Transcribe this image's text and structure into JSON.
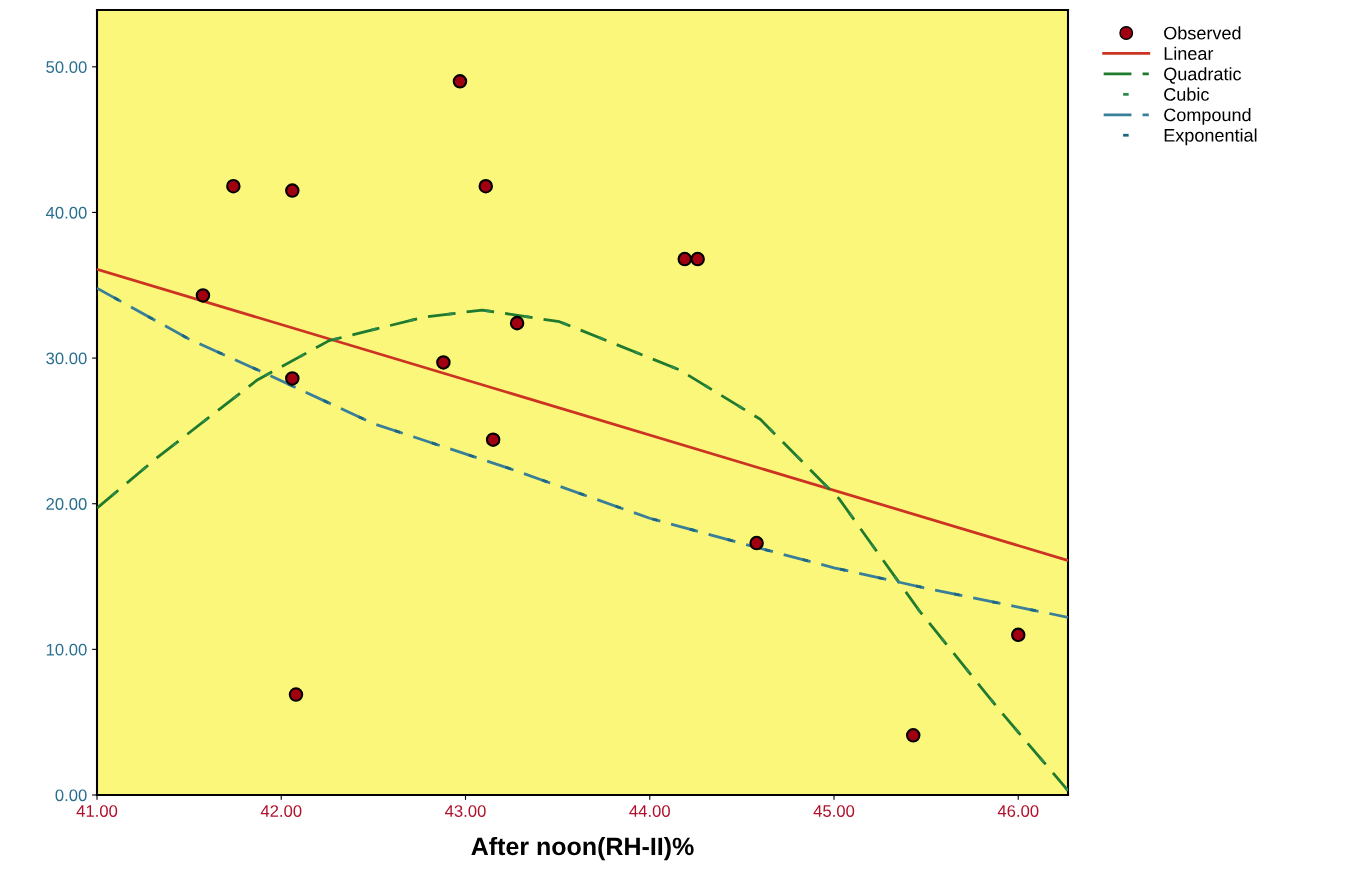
{
  "chart_data": {
    "type": "scatter",
    "xlabel": "After noon(RH-II)%",
    "xlim": [
      41.0,
      46.27
    ],
    "ylim": [
      0,
      53.9
    ],
    "xticks": [
      {
        "value": 41,
        "label": "41.00"
      },
      {
        "value": 42,
        "label": "42.00"
      },
      {
        "value": 43,
        "label": "43.00"
      },
      {
        "value": 44,
        "label": "44.00"
      },
      {
        "value": 45,
        "label": "45.00"
      },
      {
        "value": 46,
        "label": "46.00"
      }
    ],
    "yticks": [
      {
        "value": 0,
        "label": "0.00"
      },
      {
        "value": 10,
        "label": "10.00"
      },
      {
        "value": 20,
        "label": "20.00"
      },
      {
        "value": 30,
        "label": "30.00"
      },
      {
        "value": 40,
        "label": "40.00"
      },
      {
        "value": 50,
        "label": "50.00"
      }
    ],
    "grid": false,
    "legend": "top right",
    "series": [
      {
        "name": "Observed",
        "marker": "circle",
        "color": "#a00010",
        "x": [
          41.575,
          41.74,
          42.06,
          42.06,
          42.08,
          42.88,
          42.97,
          43.11,
          43.15,
          43.28,
          44.19,
          44.26,
          44.58,
          45.43,
          46.0
        ],
        "values": [
          34.3,
          41.8,
          41.5,
          28.6,
          6.9,
          29.7,
          49.0,
          41.8,
          24.4,
          32.4,
          36.8,
          36.8,
          17.3,
          4.1,
          11.0
        ]
      },
      {
        "name": "Linear",
        "type": "line",
        "line_style": "solid",
        "color": "#cc3322",
        "x": [
          41.0,
          46.27
        ],
        "values": [
          36.1,
          16.1
        ]
      },
      {
        "name": "Quadratic",
        "type": "line",
        "line_style": "dashed",
        "color": "#1f7a2e",
        "x": [
          41.0,
          41.33,
          41.87,
          42.26,
          42.77,
          43.09,
          43.51,
          44.16,
          44.6,
          45.03,
          45.46,
          45.9,
          46.27
        ],
        "values": [
          19.7,
          23.2,
          28.5,
          31.2,
          32.8,
          33.3,
          32.5,
          29.2,
          25.8,
          20.3,
          12.7,
          5.8,
          0.3
        ]
      },
      {
        "name": "Cubic",
        "type": "line",
        "line_style": "dotted",
        "color": "#2e8b4a",
        "x": [
          41.0,
          41.33,
          41.87,
          42.26,
          42.77,
          43.09,
          43.51,
          44.16,
          44.6,
          45.03,
          45.46,
          45.9,
          46.27
        ],
        "values": [
          19.7,
          23.2,
          28.5,
          31.2,
          32.8,
          33.3,
          32.5,
          29.2,
          25.8,
          20.3,
          12.7,
          5.8,
          0.3
        ]
      },
      {
        "name": "Compound",
        "type": "line",
        "line_style": "dashed",
        "color": "#3a7f9a",
        "x": [
          41.0,
          41.5,
          41.87,
          42.5,
          43.22,
          44.0,
          44.58,
          45.0,
          45.5,
          46.0,
          46.27
        ],
        "values": [
          34.8,
          31.3,
          29.2,
          25.5,
          22.5,
          19.0,
          17.0,
          15.6,
          14.2,
          12.9,
          12.2
        ]
      },
      {
        "name": "Exponential",
        "type": "line",
        "line_style": "dotted",
        "color": "#1d6680",
        "x": [
          41.0,
          41.5,
          41.87,
          42.5,
          43.22,
          44.0,
          44.58,
          45.0,
          45.5,
          46.0,
          46.27
        ],
        "values": [
          34.8,
          31.3,
          29.2,
          25.5,
          22.5,
          19.0,
          17.0,
          15.6,
          14.2,
          12.9,
          12.2
        ]
      }
    ]
  }
}
